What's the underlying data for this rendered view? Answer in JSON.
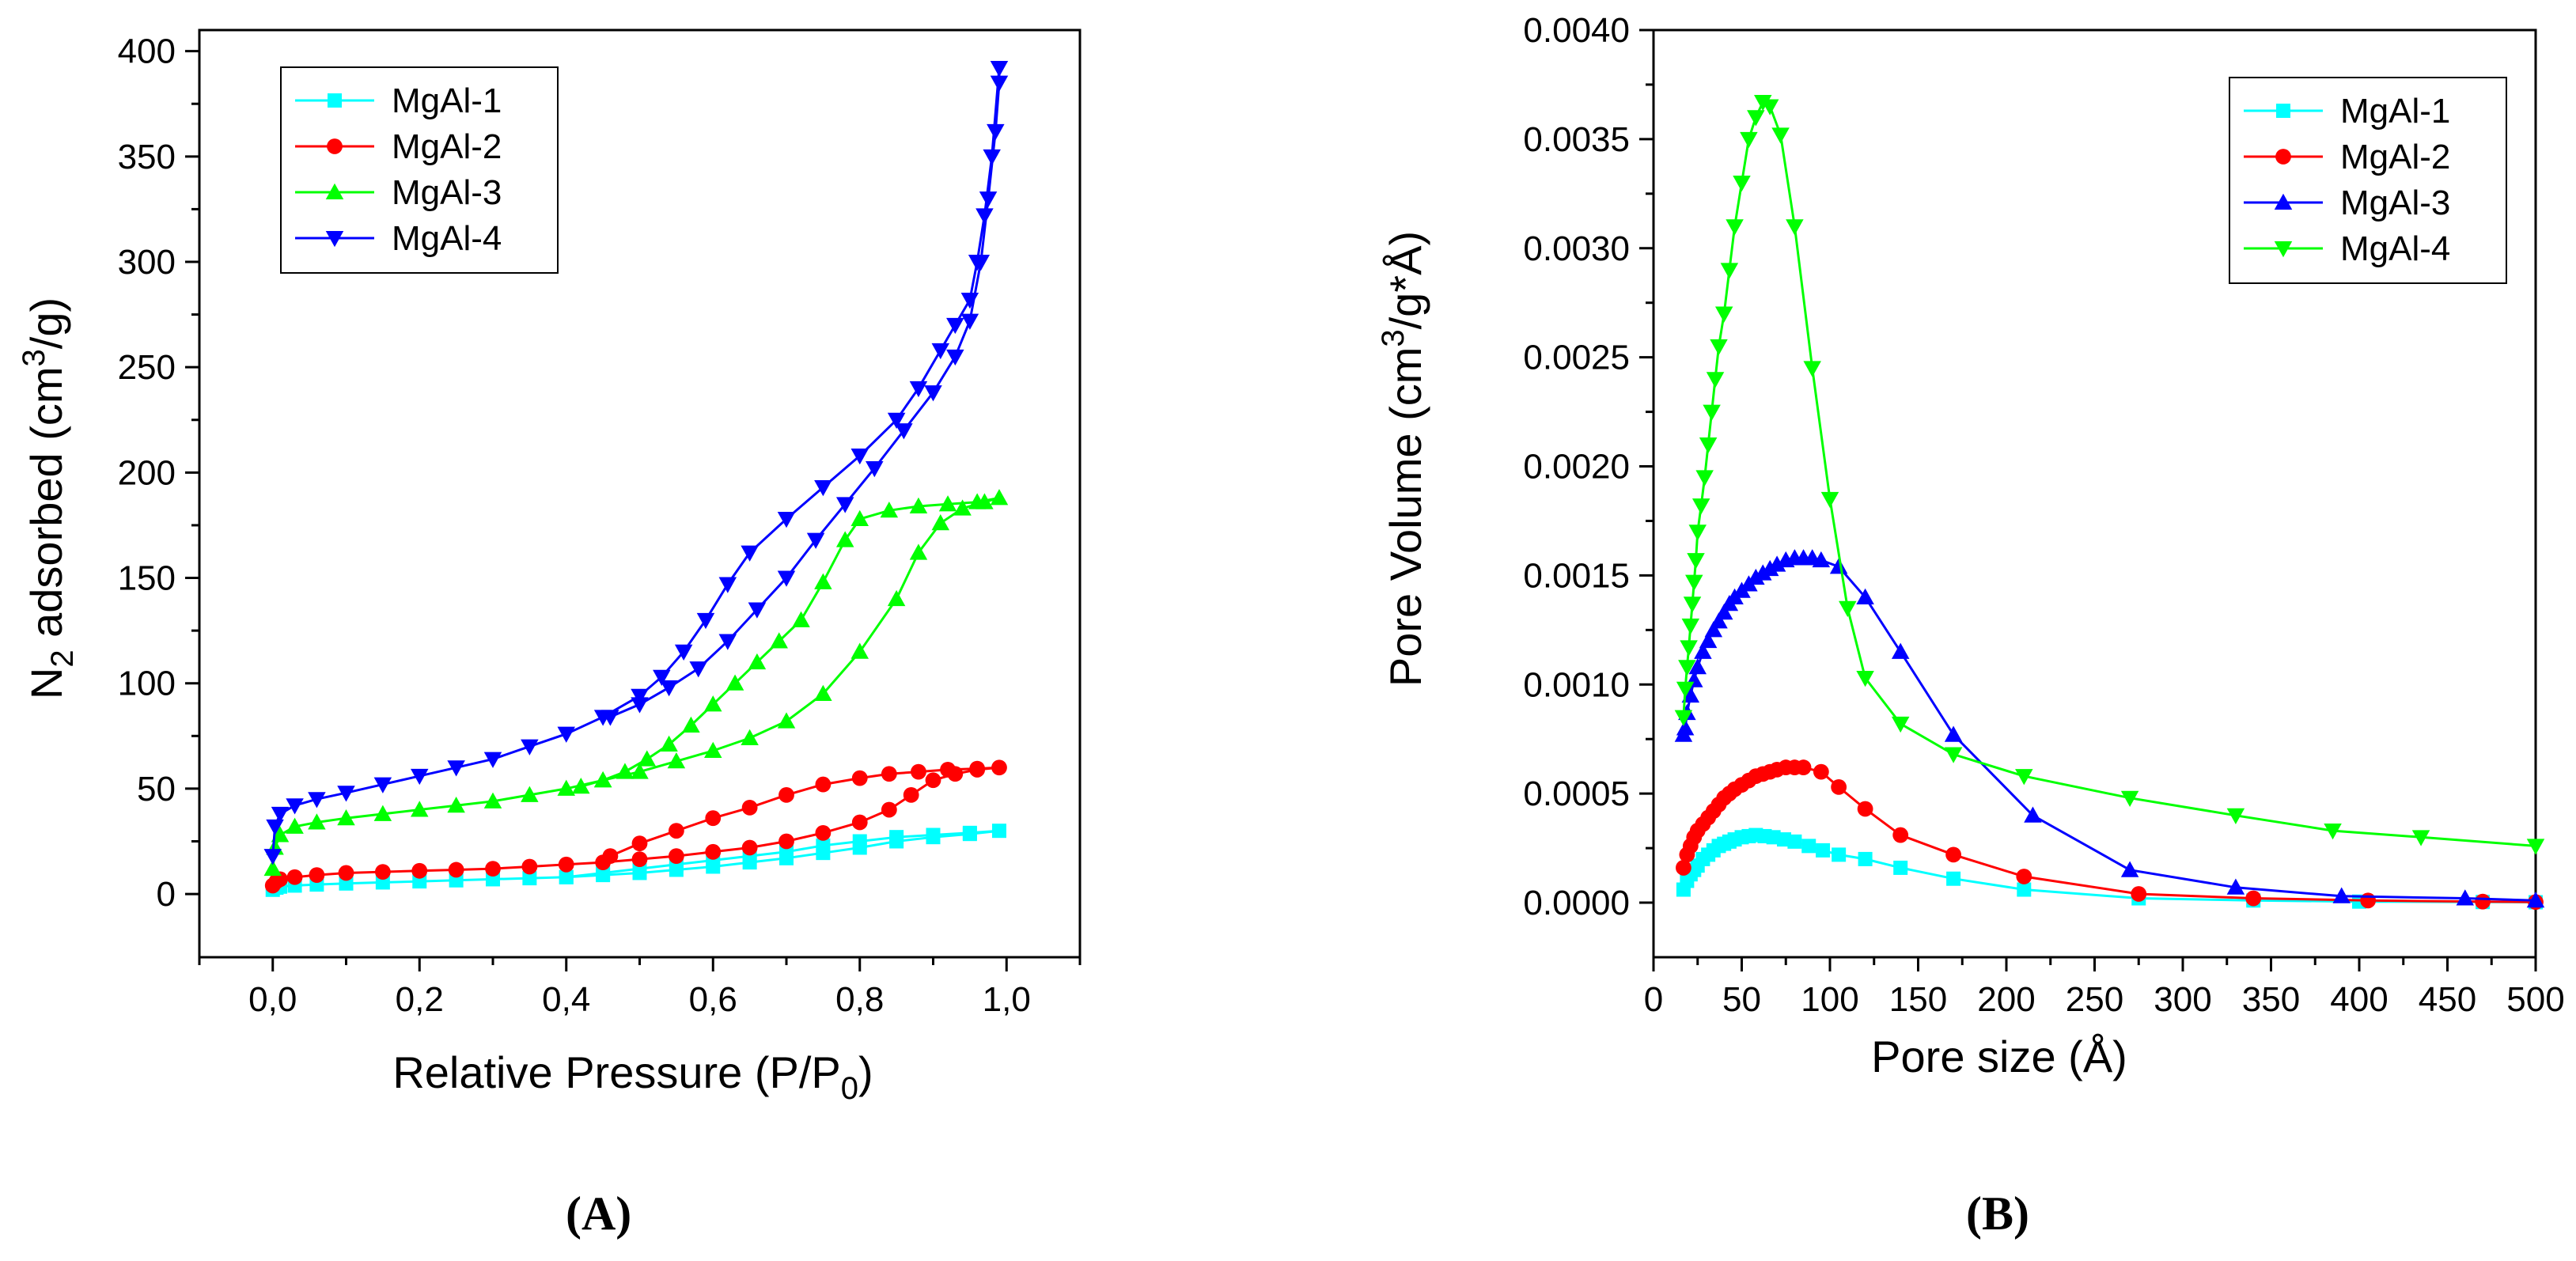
{
  "chart_data": [
    {
      "id": "A",
      "type": "line",
      "panel_label": "(A)",
      "xlabel": "Relative Pressure (P/P",
      "xlabel_sub": "0",
      "xlabel_end": ")",
      "ylabel_pre": "N",
      "ylabel_sub": "2",
      "ylabel_mid": " adsorbed (cm",
      "ylabel_sup": "3",
      "ylabel_end": "/g)",
      "xlim": [
        -0.1,
        1.1
      ],
      "ylim": [
        -30,
        410
      ],
      "xticks": [
        0.0,
        0.2,
        0.4,
        0.6,
        0.8,
        1.0
      ],
      "xtick_labels": [
        "0,0",
        "0,2",
        "0,4",
        "0,6",
        "0,8",
        "1,0"
      ],
      "yticks": [
        0,
        50,
        100,
        150,
        200,
        250,
        300,
        350,
        400
      ],
      "ytick_labels": [
        "0",
        "50",
        "100",
        "150",
        "200",
        "250",
        "300",
        "350",
        "400"
      ],
      "legend": "top-left",
      "series": [
        {
          "name": "MgAl-1",
          "color": "#00FFFF",
          "marker": "square",
          "x": [
            0.0,
            0.005,
            0.01,
            0.03,
            0.06,
            0.1,
            0.15,
            0.2,
            0.25,
            0.3,
            0.35,
            0.4,
            0.45,
            0.5,
            0.55,
            0.6,
            0.65,
            0.7,
            0.75,
            0.8,
            0.85,
            0.9,
            0.95,
            0.99,
            0.95,
            0.9,
            0.85,
            0.8,
            0.75,
            0.7,
            0.65,
            0.6,
            0.55,
            0.5,
            0.45,
            0.4
          ],
          "y": [
            2,
            3,
            3.5,
            4,
            4.5,
            5,
            5.5,
            6,
            6.5,
            7,
            7.5,
            8,
            9,
            10,
            11.5,
            13,
            15,
            17,
            19.5,
            22,
            25,
            27,
            28.5,
            30,
            29,
            28,
            27,
            25,
            23,
            20,
            18,
            16,
            14,
            12,
            10,
            8
          ]
        },
        {
          "name": "MgAl-2",
          "color": "#FF0000",
          "marker": "circle",
          "x": [
            0.0,
            0.005,
            0.01,
            0.03,
            0.06,
            0.1,
            0.15,
            0.2,
            0.25,
            0.3,
            0.35,
            0.4,
            0.45,
            0.5,
            0.55,
            0.6,
            0.65,
            0.7,
            0.75,
            0.8,
            0.84,
            0.87,
            0.9,
            0.93,
            0.96,
            0.99,
            0.96,
            0.92,
            0.88,
            0.84,
            0.8,
            0.75,
            0.7,
            0.65,
            0.6,
            0.55,
            0.5,
            0.46
          ],
          "y": [
            4,
            6,
            7,
            8,
            9,
            10,
            10.5,
            11,
            11.5,
            12,
            13,
            14,
            15,
            16.5,
            18,
            20,
            22,
            25,
            29,
            34,
            40,
            47,
            54,
            57,
            59,
            60,
            59.5,
            59,
            58,
            57,
            55,
            52,
            47,
            41,
            36,
            30,
            24,
            18
          ]
        },
        {
          "name": "MgAl-3",
          "color": "#00FF00",
          "marker": "triangle-up",
          "x": [
            0.0,
            0.003,
            0.01,
            0.03,
            0.06,
            0.1,
            0.15,
            0.2,
            0.25,
            0.3,
            0.35,
            0.4,
            0.45,
            0.5,
            0.55,
            0.6,
            0.65,
            0.7,
            0.75,
            0.8,
            0.85,
            0.88,
            0.91,
            0.94,
            0.97,
            0.99,
            0.96,
            0.92,
            0.88,
            0.84,
            0.8,
            0.78,
            0.75,
            0.72,
            0.69,
            0.66,
            0.63,
            0.6,
            0.57,
            0.54,
            0.51,
            0.48,
            0.45,
            0.42
          ],
          "y": [
            12,
            22,
            28,
            32,
            34,
            36,
            38,
            40,
            42,
            44,
            47,
            50,
            54,
            58,
            63,
            68,
            74,
            82,
            95,
            115,
            140,
            162,
            176,
            183,
            186,
            188,
            186,
            185,
            184,
            182,
            178,
            168,
            148,
            130,
            120,
            110,
            100,
            90,
            80,
            71,
            64,
            58,
            54,
            51
          ]
        },
        {
          "name": "MgAl-4",
          "color": "#0000FF",
          "marker": "triangle-down",
          "x": [
            0.0,
            0.003,
            0.01,
            0.03,
            0.06,
            0.1,
            0.15,
            0.2,
            0.25,
            0.3,
            0.35,
            0.4,
            0.45,
            0.5,
            0.53,
            0.56,
            0.59,
            0.62,
            0.65,
            0.7,
            0.75,
            0.8,
            0.85,
            0.88,
            0.91,
            0.93,
            0.95,
            0.96,
            0.97,
            0.98,
            0.99,
            0.99,
            0.985,
            0.975,
            0.965,
            0.95,
            0.93,
            0.9,
            0.86,
            0.82,
            0.78,
            0.74,
            0.7,
            0.66,
            0.62,
            0.58,
            0.54,
            0.5,
            0.46
          ],
          "y": [
            18,
            32,
            38,
            42,
            45,
            48,
            52,
            56,
            60,
            64,
            70,
            76,
            84,
            94,
            103,
            115,
            130,
            147,
            162,
            178,
            193,
            208,
            225,
            240,
            258,
            270,
            282,
            300,
            322,
            350,
            392,
            385,
            362,
            330,
            300,
            272,
            255,
            238,
            220,
            202,
            185,
            168,
            150,
            135,
            120,
            107,
            98,
            90,
            84
          ]
        }
      ]
    },
    {
      "id": "B",
      "type": "line",
      "panel_label": "(B)",
      "xlabel": "Pore size (Å)",
      "ylabel_pre": "Pore Volume (cm",
      "ylabel_sup": "3",
      "ylabel_end": "/g*Å)",
      "xlim": [
        0,
        500
      ],
      "ylim": [
        -0.00025,
        0.004
      ],
      "xticks": [
        0,
        50,
        100,
        150,
        200,
        250,
        300,
        350,
        400,
        450,
        500
      ],
      "xtick_labels": [
        "0",
        "50",
        "100",
        "150",
        "200",
        "250",
        "300",
        "350",
        "400",
        "450",
        "500"
      ],
      "yticks": [
        0.0,
        0.0005,
        0.001,
        0.0015,
        0.002,
        0.0025,
        0.003,
        0.0035,
        0.004
      ],
      "ytick_labels": [
        "0.0000",
        "0.0005",
        "0.0010",
        "0.0015",
        "0.0020",
        "0.0025",
        "0.0030",
        "0.0035",
        "0.0040"
      ],
      "legend": "top-right",
      "series": [
        {
          "name": "MgAl-1",
          "color": "#00FFFF",
          "marker": "square",
          "x": [
            17,
            19,
            21,
            23,
            25,
            28,
            31,
            34,
            37,
            40,
            43,
            46,
            50,
            54,
            58,
            63,
            68,
            74,
            80,
            88,
            96,
            105,
            120,
            140,
            170,
            210,
            275,
            340,
            400,
            470,
            500
          ],
          "y": [
            6e-05,
            0.0001,
            0.00013,
            0.00015,
            0.00017,
            0.0002,
            0.00022,
            0.00024,
            0.00026,
            0.00027,
            0.00028,
            0.00029,
            0.0003,
            0.000305,
            0.00031,
            0.000305,
            0.0003,
            0.00029,
            0.00028,
            0.00026,
            0.00024,
            0.00022,
            0.0002,
            0.00016,
            0.00011,
            6e-05,
            2e-05,
            1e-05,
            5e-06,
            3e-06,
            2e-06
          ]
        },
        {
          "name": "MgAl-2",
          "color": "#FF0000",
          "marker": "circle",
          "x": [
            17,
            19,
            21,
            23,
            25,
            28,
            31,
            34,
            37,
            40,
            43,
            46,
            50,
            54,
            58,
            62,
            66,
            70,
            75,
            80,
            85,
            95,
            105,
            120,
            140,
            170,
            210,
            275,
            340,
            405,
            470,
            500
          ],
          "y": [
            0.00016,
            0.00022,
            0.00026,
            0.0003,
            0.00033,
            0.00036,
            0.00039,
            0.00042,
            0.00045,
            0.00048,
            0.0005,
            0.00052,
            0.00054,
            0.00056,
            0.00058,
            0.00059,
            0.0006,
            0.00061,
            0.00062,
            0.00062,
            0.00062,
            0.0006,
            0.00053,
            0.00043,
            0.00031,
            0.00022,
            0.00012,
            4e-05,
            2e-05,
            1e-05,
            5e-06,
            3e-06
          ]
        },
        {
          "name": "MgAl-3",
          "color": "#0000FF",
          "marker": "triangle-up",
          "x": [
            17,
            18,
            19,
            21,
            23,
            25,
            28,
            31,
            34,
            37,
            40,
            43,
            46,
            50,
            54,
            58,
            62,
            66,
            70,
            75,
            80,
            85,
            90,
            95,
            105,
            120,
            140,
            170,
            215,
            270,
            330,
            390,
            460,
            500
          ],
          "y": [
            0.00077,
            0.0008,
            0.00087,
            0.00095,
            0.00102,
            0.00108,
            0.00115,
            0.0012,
            0.00125,
            0.00129,
            0.00133,
            0.00137,
            0.0014,
            0.00143,
            0.00146,
            0.00149,
            0.00151,
            0.00153,
            0.00155,
            0.00157,
            0.00158,
            0.00158,
            0.00158,
            0.00157,
            0.00154,
            0.0014,
            0.00115,
            0.00077,
            0.0004,
            0.00015,
            7e-05,
            3e-05,
            2e-05,
            1e-05
          ]
        },
        {
          "name": "MgAl-4",
          "color": "#00FF00",
          "marker": "triangle-down",
          "x": [
            17,
            18,
            19,
            20,
            21,
            22,
            23,
            24,
            25,
            27,
            29,
            31,
            33,
            35,
            37,
            40,
            43,
            46,
            50,
            54,
            58,
            62,
            66,
            72,
            80,
            90,
            100,
            110,
            120,
            140,
            170,
            210,
            270,
            330,
            385,
            435,
            500
          ],
          "y": [
            0.00085,
            0.00098,
            0.00108,
            0.00117,
            0.00127,
            0.00137,
            0.00147,
            0.00157,
            0.0017,
            0.00182,
            0.00195,
            0.0021,
            0.00225,
            0.0024,
            0.00255,
            0.0027,
            0.0029,
            0.0031,
            0.0033,
            0.0035,
            0.0036,
            0.00367,
            0.00365,
            0.00352,
            0.0031,
            0.00245,
            0.00185,
            0.00135,
            0.00103,
            0.00082,
            0.00068,
            0.00058,
            0.00048,
            0.0004,
            0.00033,
            0.0003,
            0.00026
          ]
        }
      ]
    }
  ]
}
